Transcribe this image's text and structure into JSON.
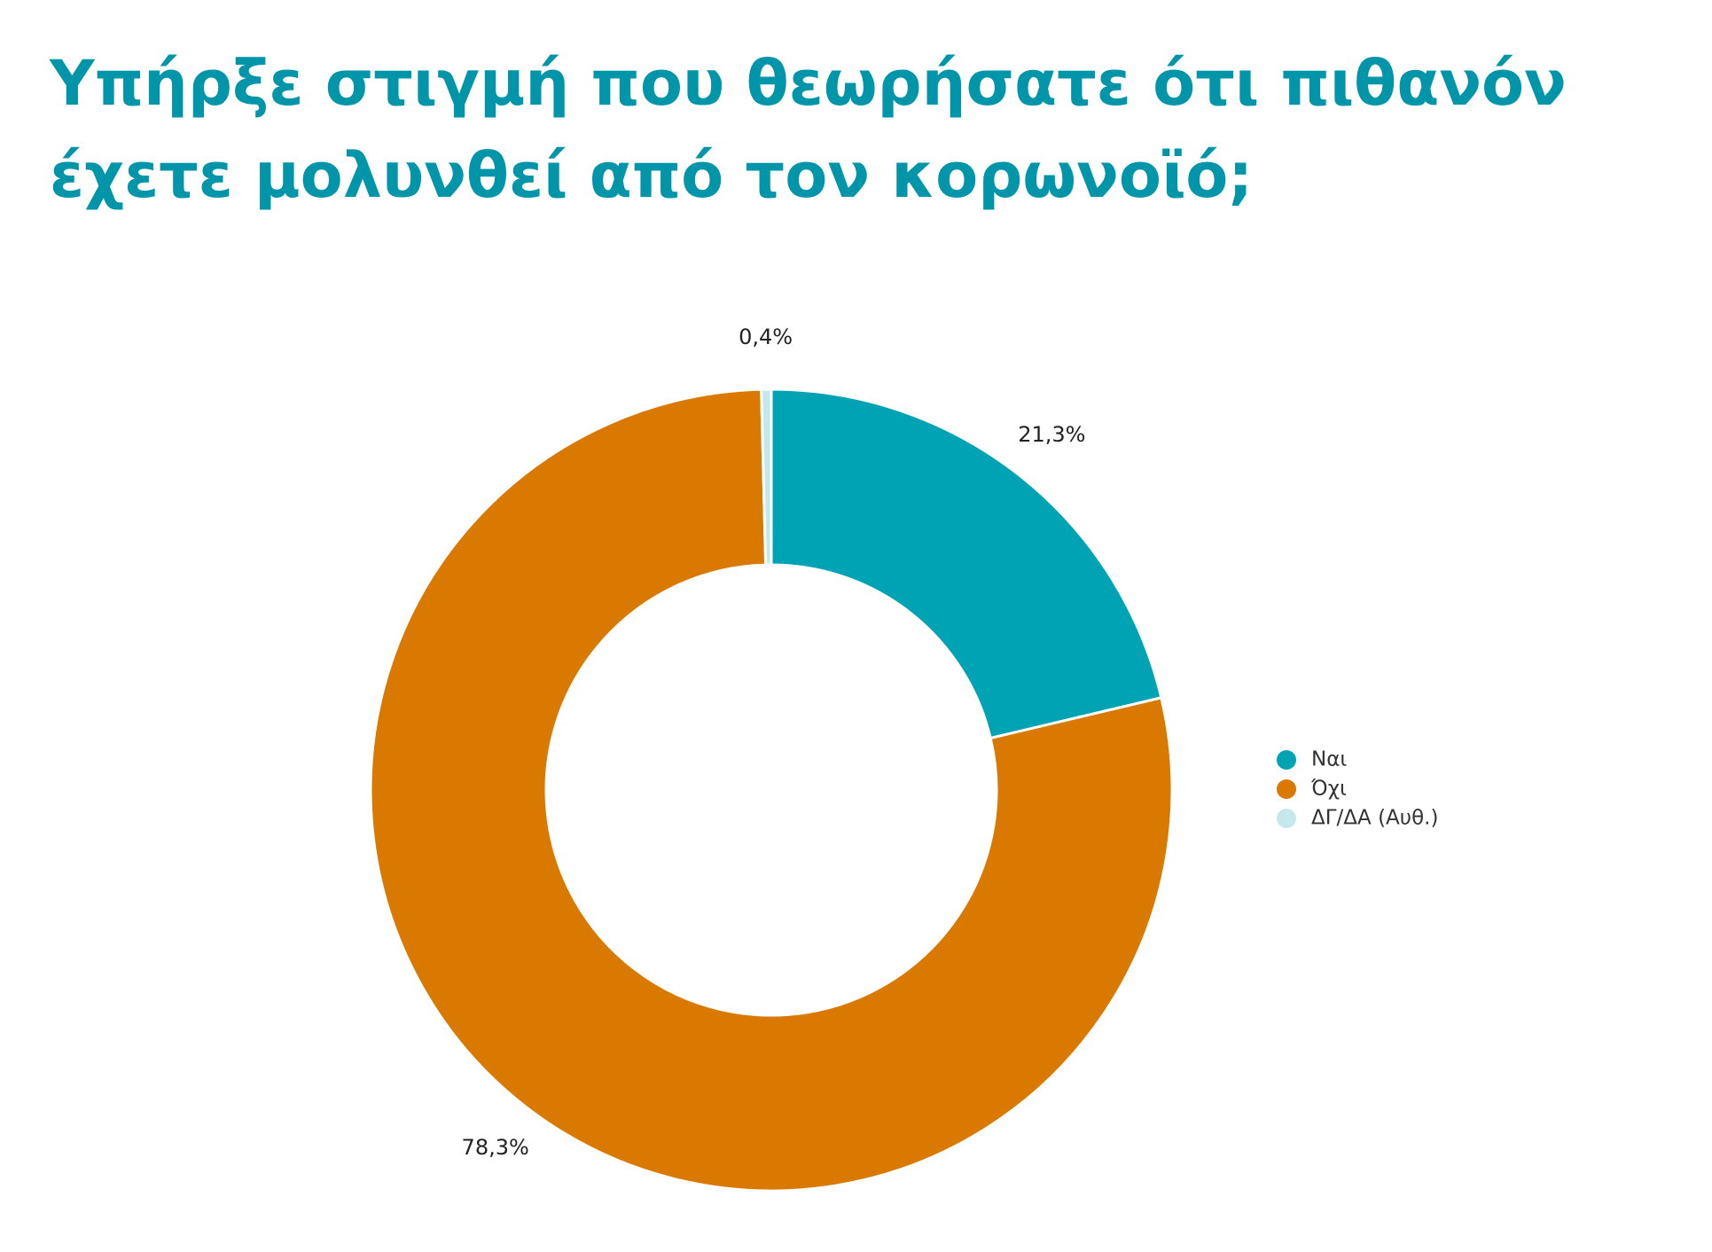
{
  "chart_data": {
    "type": "donut",
    "title": [
      "Υπήρξε στιγμή που θεωρήσατε ότι πιθανόν",
      "έχετε μολυνθεί από τον κορωνοϊό;"
    ],
    "categories": [
      "Ναι",
      "Όχι",
      "ΔΓ/ΔΑ (Αυθ.)"
    ],
    "values": [
      21.3,
      78.3,
      0.4
    ],
    "value_labels": [
      "21,3%",
      "78,3%",
      "0,4%"
    ],
    "colors": [
      "#00a3b4",
      "#d97900",
      "#c5e8ec"
    ],
    "legend": "right"
  }
}
